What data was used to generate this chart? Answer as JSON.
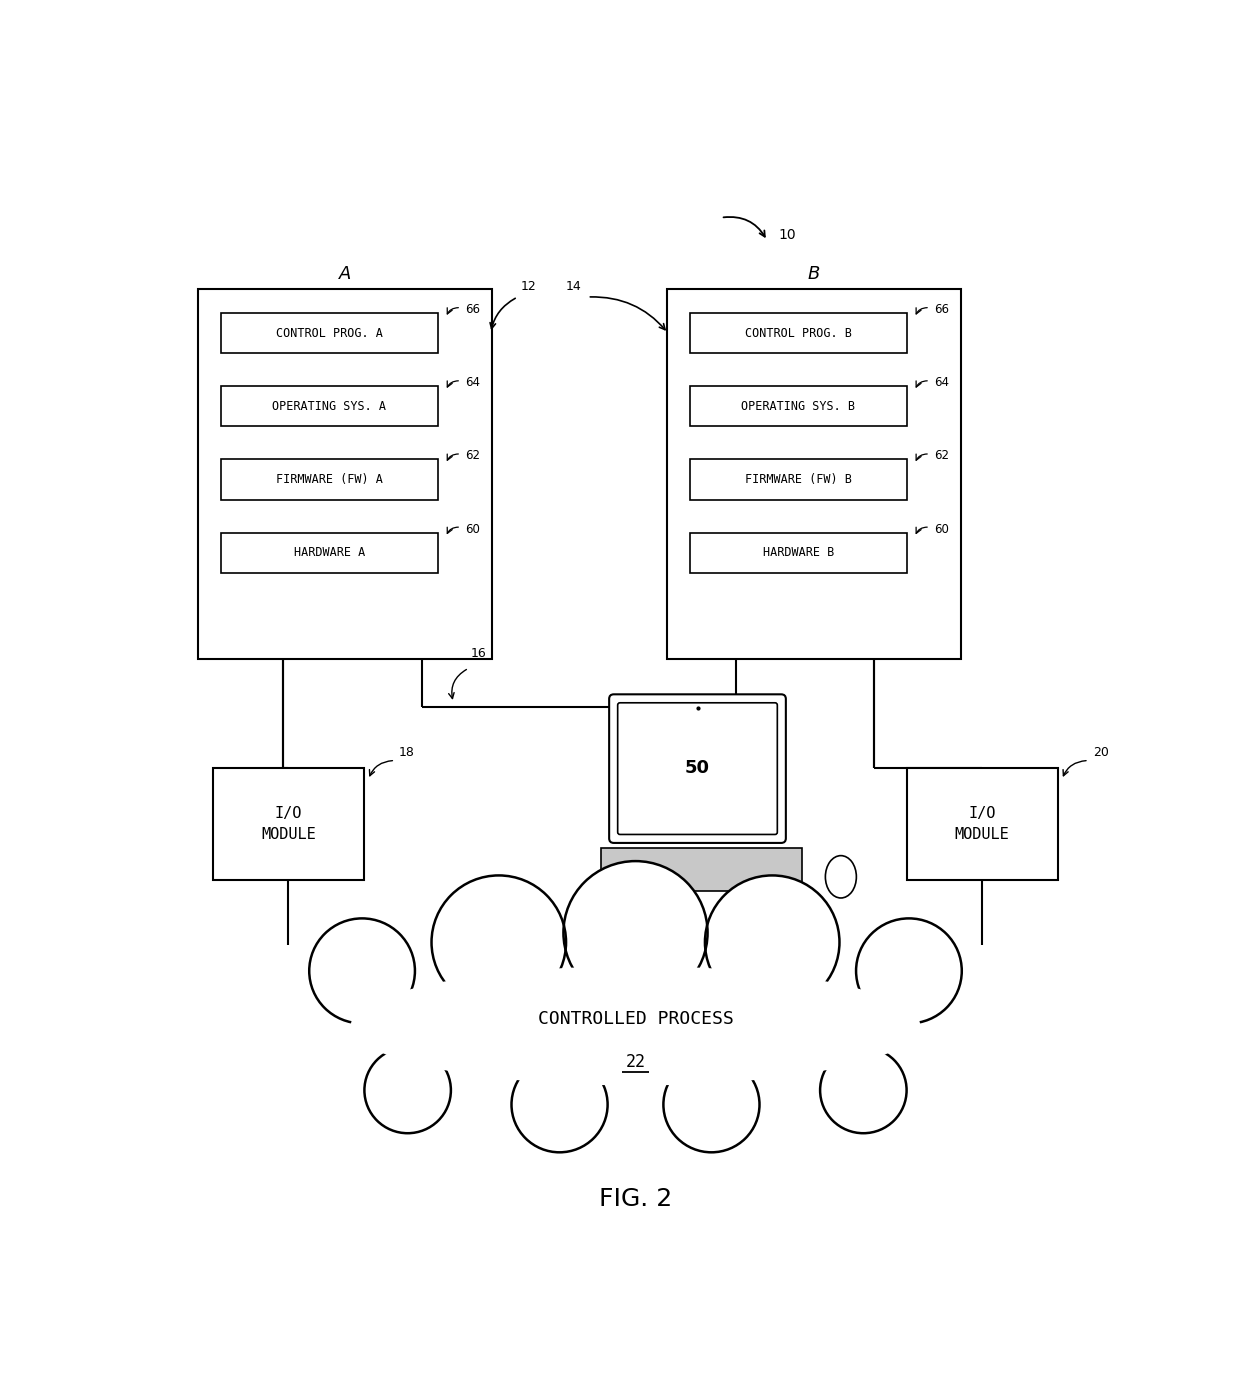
{
  "bg_color": "#ffffff",
  "fig_label": "FIG. 2",
  "ref_10": "10",
  "ref_12": "12",
  "ref_14": "14",
  "ref_16": "16",
  "ref_18": "18",
  "ref_20": "20",
  "ref_50": "50",
  "box_A_label": "A",
  "box_B_label": "B",
  "box_A_items": [
    "CONTROL PROG. A",
    "OPERATING SYS. A",
    "FIRMWARE (FW) A",
    "HARDWARE A"
  ],
  "box_B_items": [
    "CONTROL PROG. B",
    "OPERATING SYS. B",
    "FIRMWARE (FW) B",
    "HARDWARE B"
  ],
  "refs_A": [
    "66",
    "64",
    "62",
    "60"
  ],
  "refs_B": [
    "66",
    "64",
    "62",
    "60"
  ],
  "io_left_label": "I/O\nMODULE",
  "io_right_label": "I/O\nMODULE",
  "cloud_line1": "CONTROLLED PROCESS",
  "cloud_line2": "22",
  "line_color": "#000000",
  "font_size_inner": 8.5,
  "font_size_ref": 8,
  "font_size_io": 10,
  "font_size_fig": 16,
  "font_size_AB": 13
}
